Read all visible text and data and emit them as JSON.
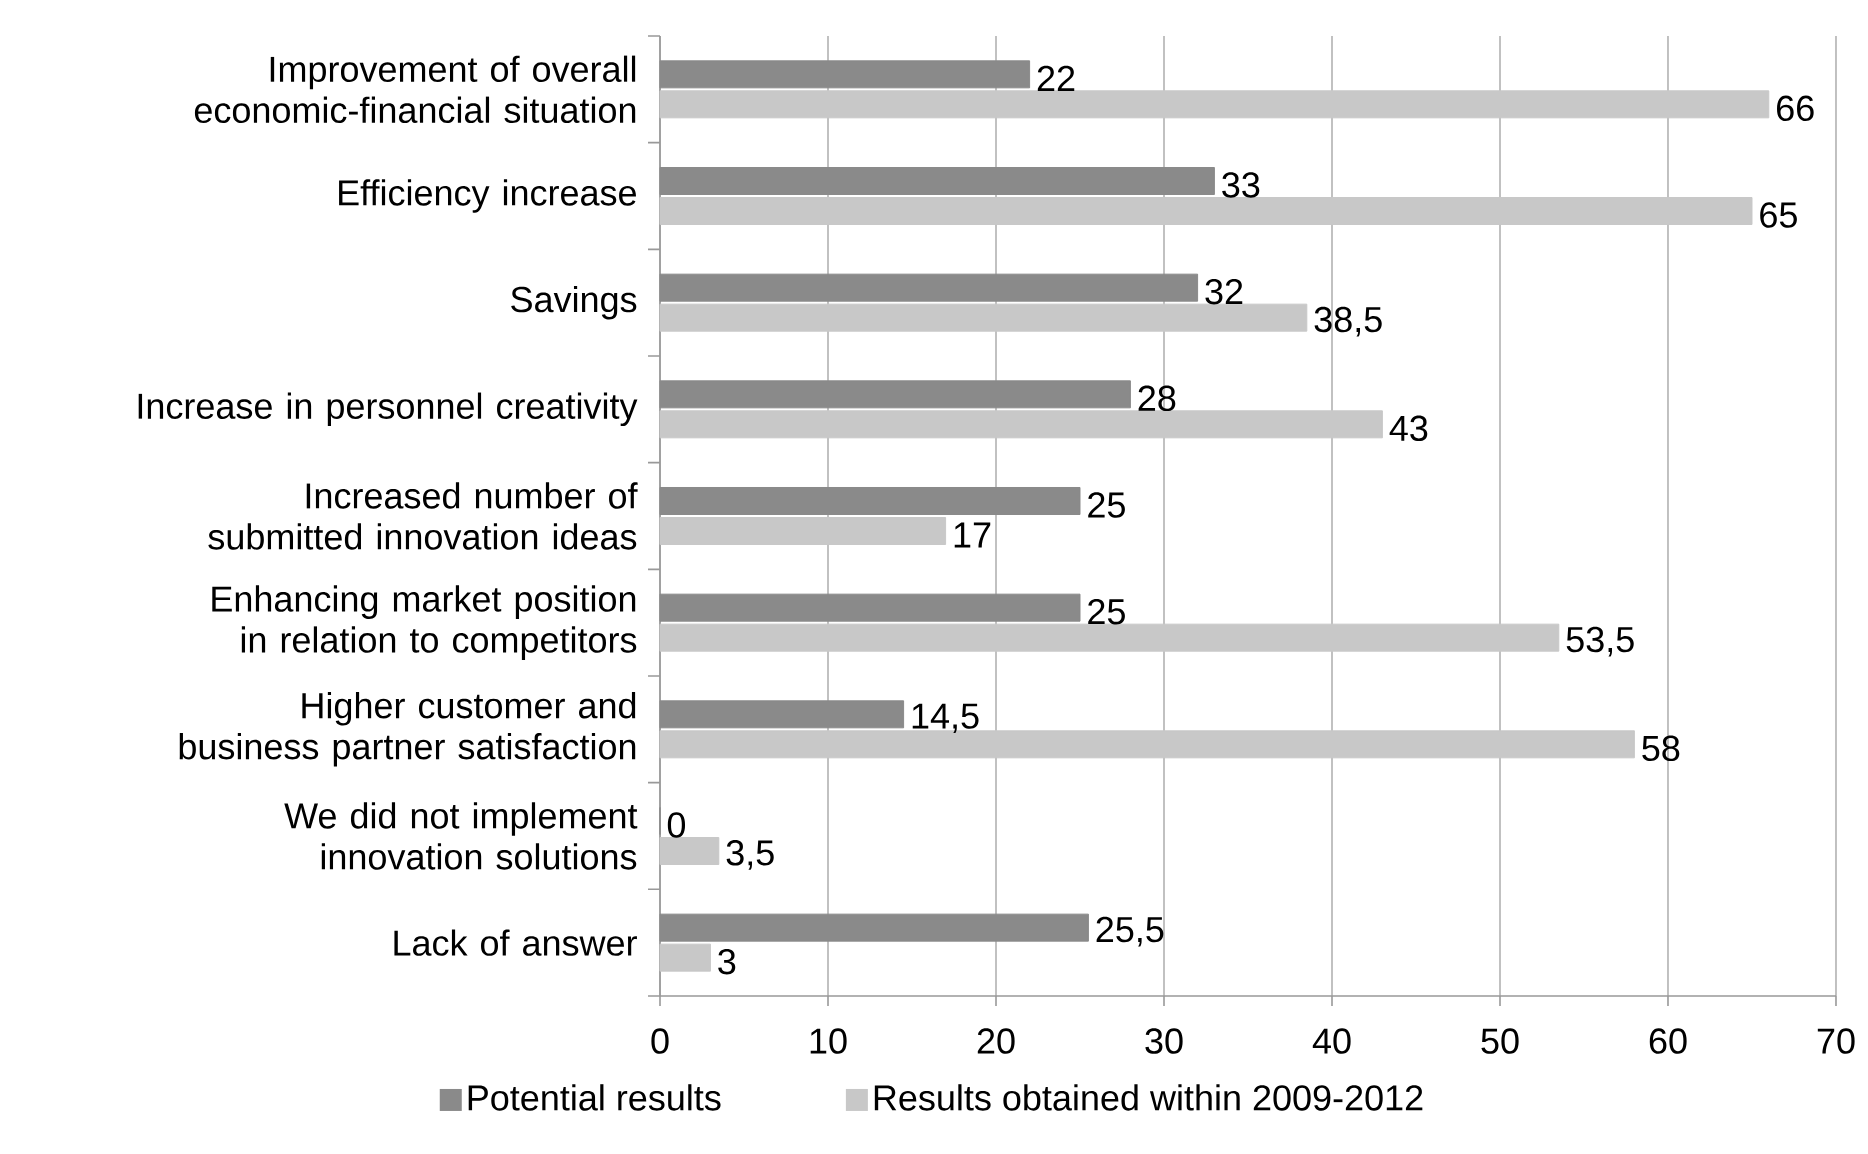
{
  "chart_data": {
    "type": "bar",
    "orientation": "horizontal",
    "categories": [
      "Improvement of overall economic-financial situation",
      "Efficiency increase",
      "Savings",
      "Increase in personnel creativity",
      "Increased number of submitted innovation ideas",
      "Enhancing market position in relation to competitors",
      "Higher customer and business partner satisfaction",
      "We did not implement innovation solutions",
      "Lack of answer"
    ],
    "series": [
      {
        "name": "Potential results",
        "color": "#8a8a8a",
        "values": [
          22,
          33,
          32,
          28,
          25,
          25,
          14.5,
          0,
          25.5
        ],
        "value_labels": [
          "22",
          "33",
          "32",
          "28",
          "25",
          "25",
          "14,5",
          "0",
          "25,5"
        ]
      },
      {
        "name": "Results obtained within 2009-2012",
        "color": "#c8c8c8",
        "values": [
          66,
          65,
          38.5,
          43,
          17,
          53.5,
          58,
          3.5,
          3
        ],
        "value_labels": [
          "66",
          "65",
          "38,5",
          "43",
          "17",
          "53,5",
          "58",
          "3,5",
          "3"
        ]
      }
    ],
    "xlim": [
      0,
      70
    ],
    "xticks": [
      0,
      10,
      20,
      30,
      40,
      50,
      60,
      70
    ],
    "grid": "x",
    "legend": "bottom"
  }
}
